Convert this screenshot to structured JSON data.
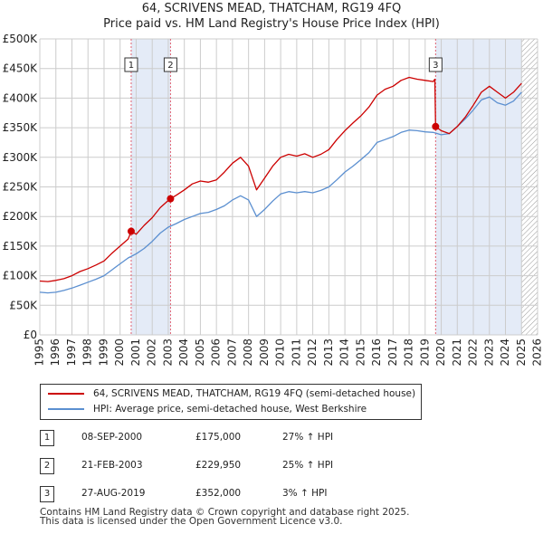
{
  "title_line1": "64, SCRIVENS MEAD, THATCHAM, RG19 4FQ",
  "title_line2": "Price paid vs. HM Land Registry's House Price Index (HPI)",
  "chart_data": {
    "type": "line",
    "xlim": [
      1995,
      2026
    ],
    "ylim": [
      0,
      500000
    ],
    "x_ticks": [
      1995,
      1996,
      1997,
      1998,
      1999,
      2000,
      2001,
      2002,
      2003,
      2004,
      2005,
      2006,
      2007,
      2008,
      2009,
      2010,
      2011,
      2012,
      2013,
      2014,
      2015,
      2016,
      2017,
      2018,
      2019,
      2020,
      2021,
      2022,
      2023,
      2024,
      2025,
      2026
    ],
    "y_ticks": [
      0,
      50000,
      100000,
      150000,
      200000,
      250000,
      300000,
      350000,
      400000,
      450000,
      500000
    ],
    "y_tick_labels": [
      "£0",
      "£50K",
      "£100K",
      "£150K",
      "£200K",
      "£250K",
      "£300K",
      "£350K",
      "£400K",
      "£450K",
      "£500K"
    ],
    "shaded_ranges": [
      [
        2000.69,
        2003.14
      ],
      [
        2019.65,
        2025.0
      ]
    ],
    "hatched_from": 2025.0,
    "colors": {
      "price": "#cc0000",
      "hpi": "#5b8fd0",
      "shade": "#e4ebf7",
      "grid": "#cccccc",
      "marker_line": "#e06070"
    },
    "series": [
      {
        "name": "64, SCRIVENS MEAD, THATCHAM, RG19 4FQ (semi-detached house)",
        "color": "#cc0000",
        "x": [
          1995.0,
          1995.5,
          1996.0,
          1996.5,
          1997.0,
          1997.5,
          1998.0,
          1998.5,
          1999.0,
          1999.5,
          2000.0,
          2000.5,
          2000.69,
          2001.0,
          2001.5,
          2002.0,
          2002.5,
          2003.0,
          2003.14,
          2003.5,
          2004.0,
          2004.5,
          2005.0,
          2005.5,
          2006.0,
          2006.5,
          2007.0,
          2007.5,
          2008.0,
          2008.5,
          2009.0,
          2009.5,
          2010.0,
          2010.5,
          2011.0,
          2011.5,
          2012.0,
          2012.5,
          2013.0,
          2013.5,
          2014.0,
          2014.5,
          2015.0,
          2015.5,
          2016.0,
          2016.5,
          2017.0,
          2017.5,
          2018.0,
          2018.5,
          2019.0,
          2019.5,
          2019.6,
          2019.65,
          2020.0,
          2020.5,
          2021.0,
          2021.5,
          2022.0,
          2022.5,
          2023.0,
          2023.5,
          2024.0,
          2024.5,
          2025.0
        ],
        "y": [
          91000,
          90000,
          92000,
          95000,
          100000,
          107000,
          112000,
          118000,
          125000,
          138000,
          150000,
          162000,
          175000,
          170000,
          185000,
          198000,
          215000,
          227000,
          229950,
          236000,
          245000,
          255000,
          260000,
          258000,
          262000,
          275000,
          290000,
          300000,
          285000,
          245000,
          265000,
          285000,
          300000,
          305000,
          302000,
          306000,
          300000,
          305000,
          313000,
          330000,
          345000,
          358000,
          370000,
          385000,
          405000,
          415000,
          420000,
          430000,
          435000,
          432000,
          430000,
          428000,
          432000,
          352000,
          345000,
          340000,
          352000,
          368000,
          388000,
          410000,
          420000,
          410000,
          400000,
          410000,
          425000
        ]
      },
      {
        "name": "HPI: Average price, semi-detached house, West Berkshire",
        "color": "#5b8fd0",
        "x": [
          1995.0,
          1995.5,
          1996.0,
          1996.5,
          1997.0,
          1997.5,
          1998.0,
          1998.5,
          1999.0,
          1999.5,
          2000.0,
          2000.5,
          2001.0,
          2001.5,
          2002.0,
          2002.5,
          2003.0,
          2003.5,
          2004.0,
          2004.5,
          2005.0,
          2005.5,
          2006.0,
          2006.5,
          2007.0,
          2007.5,
          2008.0,
          2008.5,
          2009.0,
          2009.5,
          2010.0,
          2010.5,
          2011.0,
          2011.5,
          2012.0,
          2012.5,
          2013.0,
          2013.5,
          2014.0,
          2014.5,
          2015.0,
          2015.5,
          2016.0,
          2016.5,
          2017.0,
          2017.5,
          2018.0,
          2018.5,
          2019.0,
          2019.5,
          2020.0,
          2020.5,
          2021.0,
          2021.5,
          2022.0,
          2022.5,
          2023.0,
          2023.5,
          2024.0,
          2024.5,
          2025.0
        ],
        "y": [
          72000,
          71000,
          72000,
          75000,
          79000,
          84000,
          89000,
          94000,
          100000,
          110000,
          120000,
          130000,
          137000,
          146000,
          158000,
          172000,
          182000,
          188000,
          195000,
          200000,
          205000,
          207000,
          212000,
          218000,
          228000,
          235000,
          228000,
          200000,
          212000,
          226000,
          238000,
          242000,
          240000,
          242000,
          240000,
          244000,
          250000,
          262000,
          275000,
          285000,
          296000,
          308000,
          325000,
          330000,
          335000,
          342000,
          346000,
          345000,
          343000,
          342000,
          338000,
          340000,
          352000,
          365000,
          380000,
          397000,
          402000,
          392000,
          388000,
          395000,
          410000
        ]
      }
    ],
    "sales": [
      {
        "label": "1",
        "x": 2000.69,
        "y": 175000
      },
      {
        "label": "2",
        "x": 2003.14,
        "y": 229950
      },
      {
        "label": "3",
        "x": 2019.65,
        "y": 352000
      }
    ]
  },
  "legend": {
    "price_label": "64, SCRIVENS MEAD, THATCHAM, RG19 4FQ (semi-detached house)",
    "hpi_label": "HPI: Average price, semi-detached house, West Berkshire"
  },
  "transactions": [
    {
      "num": "1",
      "date": "08-SEP-2000",
      "price": "£175,000",
      "hpi": "27% ↑ HPI"
    },
    {
      "num": "2",
      "date": "21-FEB-2003",
      "price": "£229,950",
      "hpi": "25% ↑ HPI"
    },
    {
      "num": "3",
      "date": "27-AUG-2019",
      "price": "£352,000",
      "hpi": "3% ↑ HPI"
    }
  ],
  "footer_line1": "Contains HM Land Registry data © Crown copyright and database right 2025.",
  "footer_line2": "This data is licensed under the Open Government Licence v3.0."
}
